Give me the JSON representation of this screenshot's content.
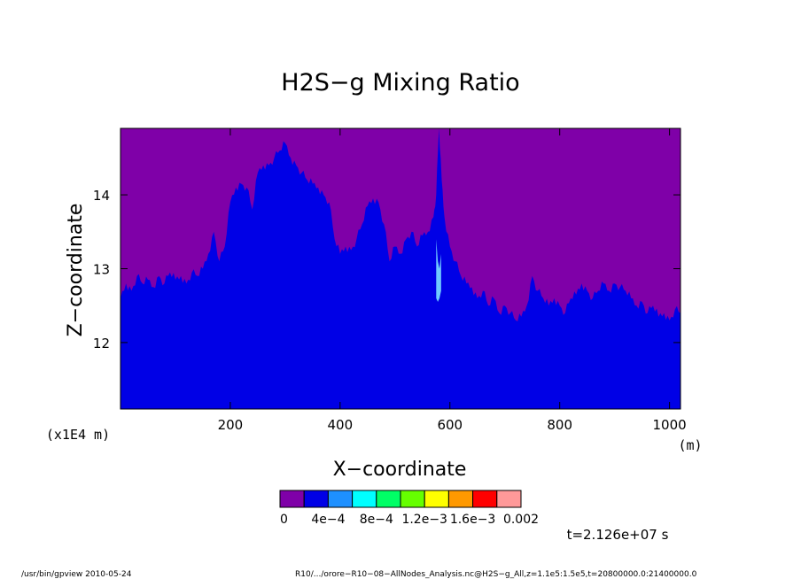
{
  "chart_data": {
    "type": "area",
    "title": "H2S−g Mixing Ratio",
    "xlabel": "X−coordinate",
    "ylabel": "Z−coordinate",
    "x_unit": "(m)",
    "y_unit": "(x1E4 m)",
    "xlim": [
      0,
      1020
    ],
    "ylim": [
      11.1,
      14.9
    ],
    "x_ticks": [
      "200",
      "400",
      "600",
      "800",
      "1000"
    ],
    "y_ticks": [
      "12",
      "13",
      "14"
    ],
    "background_color": "#7f00a8",
    "fill_color": "#0000e6",
    "boundary": {
      "x": [
        0,
        10,
        20,
        30,
        40,
        50,
        60,
        70,
        80,
        90,
        100,
        110,
        120,
        130,
        140,
        150,
        160,
        170,
        180,
        190,
        200,
        210,
        220,
        230,
        240,
        250,
        260,
        270,
        280,
        290,
        300,
        310,
        320,
        330,
        340,
        350,
        360,
        370,
        380,
        390,
        400,
        410,
        420,
        430,
        440,
        450,
        460,
        470,
        480,
        490,
        500,
        510,
        520,
        530,
        540,
        550,
        560,
        570,
        575,
        580,
        585,
        590,
        600,
        610,
        620,
        630,
        640,
        650,
        660,
        670,
        680,
        690,
        700,
        710,
        720,
        730,
        740,
        750,
        760,
        770,
        780,
        790,
        800,
        810,
        820,
        830,
        840,
        850,
        860,
        870,
        880,
        890,
        900,
        910,
        920,
        930,
        940,
        950,
        960,
        970,
        980,
        990,
        1000,
        1010,
        1020
      ],
      "z": [
        12.6,
        12.8,
        12.7,
        12.9,
        12.8,
        12.85,
        12.75,
        12.9,
        12.8,
        12.95,
        12.85,
        12.9,
        12.8,
        12.95,
        12.9,
        13.0,
        13.2,
        13.5,
        13.1,
        13.3,
        13.9,
        14.1,
        14.15,
        14.1,
        13.8,
        14.3,
        14.4,
        14.4,
        14.5,
        14.6,
        14.7,
        14.5,
        14.4,
        14.3,
        14.2,
        14.15,
        14.1,
        14.0,
        13.9,
        13.4,
        13.2,
        13.3,
        13.25,
        13.4,
        13.6,
        13.85,
        13.95,
        13.9,
        13.6,
        13.1,
        13.3,
        13.2,
        13.4,
        13.5,
        13.3,
        13.45,
        13.5,
        13.7,
        14.0,
        14.9,
        14.2,
        13.7,
        13.3,
        13.1,
        12.9,
        12.8,
        12.75,
        12.6,
        12.7,
        12.5,
        12.6,
        12.4,
        12.5,
        12.4,
        12.3,
        12.35,
        12.5,
        12.9,
        12.7,
        12.6,
        12.5,
        12.6,
        12.5,
        12.4,
        12.6,
        12.65,
        12.8,
        12.7,
        12.6,
        12.7,
        12.8,
        12.7,
        12.8,
        12.75,
        12.7,
        12.6,
        12.5,
        12.55,
        12.4,
        12.5,
        12.35,
        12.4,
        12.3,
        12.45,
        12.4
      ]
    },
    "plume": {
      "color": "#6fc9ff",
      "x": [
        575,
        578,
        581,
        584
      ],
      "z_bottom": [
        12.6,
        12.55,
        12.6,
        12.7
      ],
      "z_top": [
        13.4,
        13.1,
        13.0,
        13.2
      ]
    },
    "colorbar": {
      "colors": [
        "#7f00a8",
        "#0000e6",
        "#1e90ff",
        "#00ffff",
        "#00ff66",
        "#66ff00",
        "#ffff00",
        "#ff9900",
        "#ff0000",
        "#ff9999"
      ],
      "labels": [
        "0",
        "4e−4",
        "8e−4",
        "1.2e−3",
        "1.6e−3",
        "0.002"
      ]
    }
  },
  "time_label": "t=2.126e+07 s",
  "footer": {
    "left": "/usr/bin/gpview   2010-05-24",
    "right": "R10/.../orore−R10−08−AllNodes_Analysis.nc@H2S−g_All,z=1.1e5:1.5e5,t=20800000.0:21400000.0"
  }
}
